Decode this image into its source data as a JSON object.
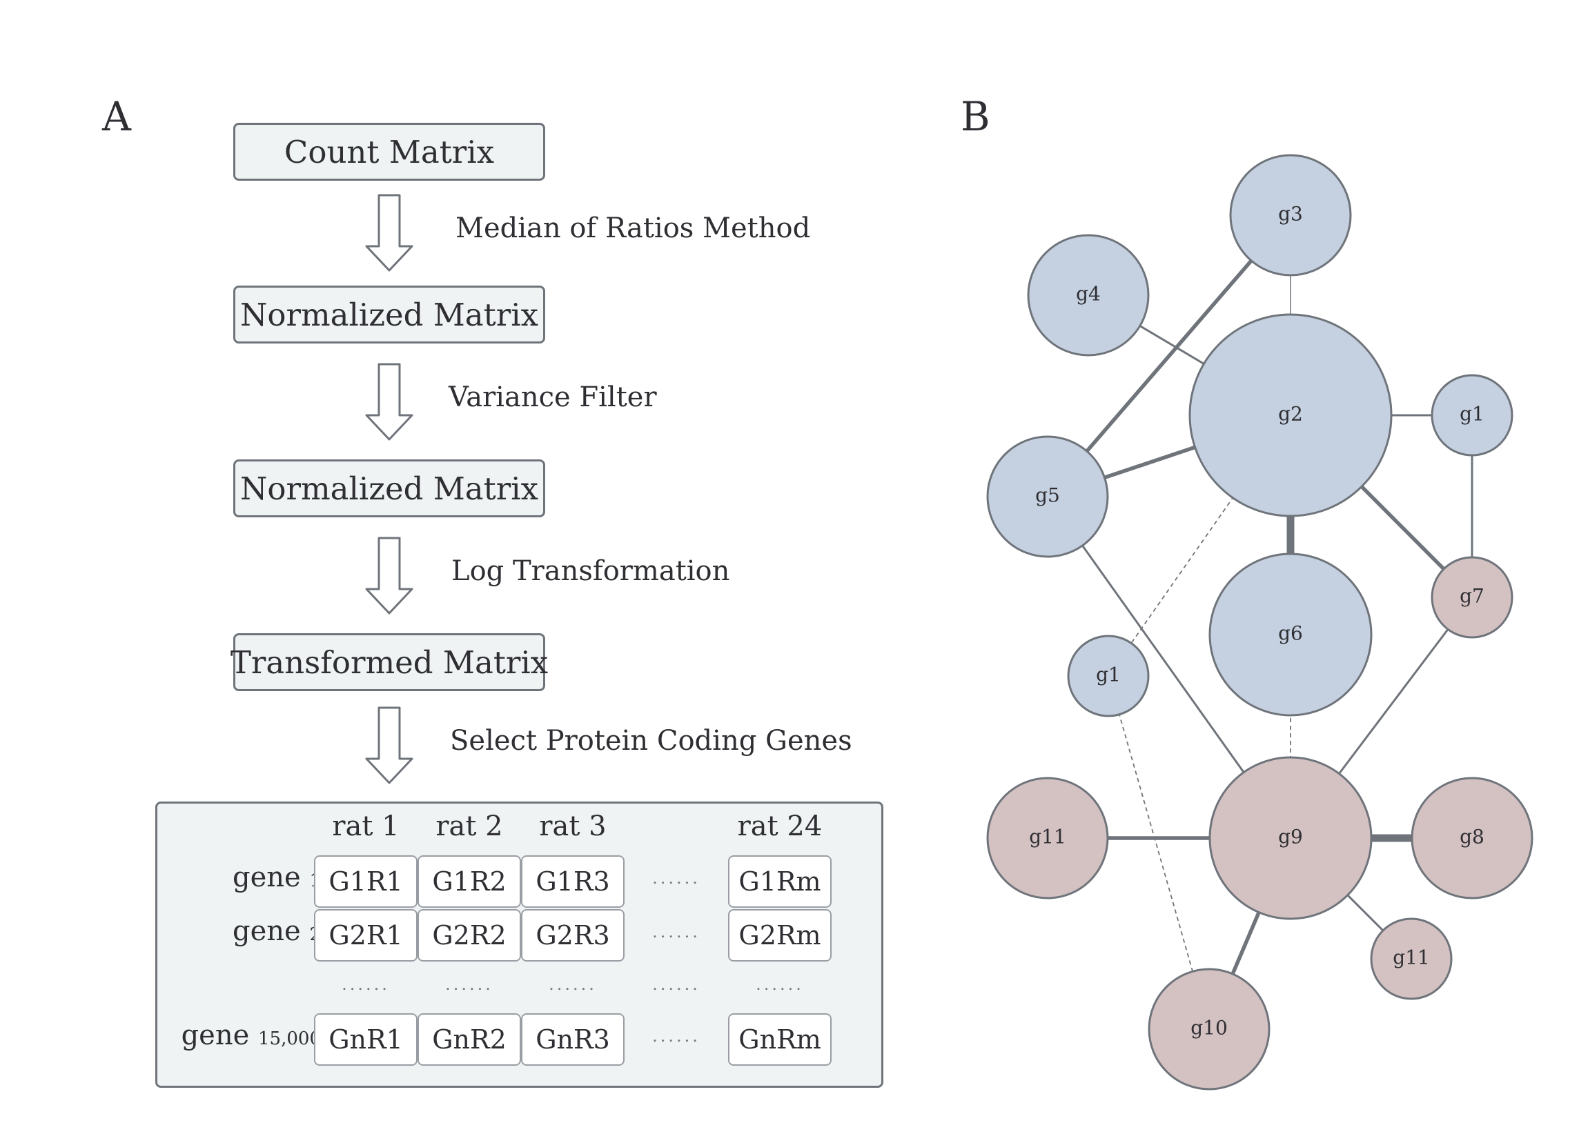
{
  "panel_a": {
    "letter": "A",
    "boxes": [
      "Count Matrix",
      "Normalized Matrix",
      "Normalized Matrix",
      "Transformed Matrix"
    ],
    "steps": [
      "Median of Ratios Method",
      "Variance Filter",
      "Log Transformation",
      "Select Protein Coding Genes"
    ],
    "table": {
      "columns": [
        "rat 1",
        "rat 2",
        "rat 3",
        "rat 24"
      ],
      "rows": [
        {
          "label": "gene",
          "sub": "1",
          "cells": [
            "G1R1",
            "G1R2",
            "G1R3",
            "G1Rm"
          ]
        },
        {
          "label": "gene",
          "sub": "2",
          "cells": [
            "G2R1",
            "G2R2",
            "G2R3",
            "G2Rm"
          ]
        },
        {
          "label": "gene",
          "sub": "15,000",
          "cells": [
            "GnR1",
            "GnR2",
            "GnR3",
            "GnRm"
          ]
        }
      ],
      "ellipsis": "......"
    }
  },
  "panel_b": {
    "letter": "B",
    "colors": {
      "blue": "#c5d1e0",
      "pink": "#d4c2c2",
      "stroke": "#6f747b"
    },
    "nodes": [
      {
        "id": "g3",
        "label": "g3",
        "group": "blue"
      },
      {
        "id": "g4",
        "label": "g4",
        "group": "blue"
      },
      {
        "id": "g2",
        "label": "g2",
        "group": "blue"
      },
      {
        "id": "g1a",
        "label": "g1",
        "group": "blue"
      },
      {
        "id": "g5",
        "label": "g5",
        "group": "blue"
      },
      {
        "id": "g7",
        "label": "g7",
        "group": "pink"
      },
      {
        "id": "g6",
        "label": "g6",
        "group": "blue"
      },
      {
        "id": "g1b",
        "label": "g1",
        "group": "blue"
      },
      {
        "id": "g11a",
        "label": "g11",
        "group": "pink"
      },
      {
        "id": "g9",
        "label": "g9",
        "group": "pink"
      },
      {
        "id": "g8",
        "label": "g8",
        "group": "pink"
      },
      {
        "id": "g11b",
        "label": "g11",
        "group": "pink"
      },
      {
        "id": "g10",
        "label": "g10",
        "group": "pink"
      }
    ],
    "edges": [
      {
        "from": "g3",
        "to": "g2",
        "style": "thin"
      },
      {
        "from": "g3",
        "to": "g5",
        "style": "thick"
      },
      {
        "from": "g4",
        "to": "g2",
        "style": "medium"
      },
      {
        "from": "g2",
        "to": "g1a",
        "style": "medium"
      },
      {
        "from": "g2",
        "to": "g5",
        "style": "thick"
      },
      {
        "from": "g2",
        "to": "g6",
        "style": "heavy"
      },
      {
        "from": "g2",
        "to": "g7",
        "style": "thick"
      },
      {
        "from": "g2",
        "to": "g1b",
        "style": "dashed"
      },
      {
        "from": "g1a",
        "to": "g7",
        "style": "medium"
      },
      {
        "from": "g5",
        "to": "g9",
        "style": "medium"
      },
      {
        "from": "g7",
        "to": "g9",
        "style": "medium"
      },
      {
        "from": "g6",
        "to": "g9",
        "style": "dashed"
      },
      {
        "from": "g1b",
        "to": "g10",
        "style": "dashed"
      },
      {
        "from": "g11a",
        "to": "g9",
        "style": "thick"
      },
      {
        "from": "g9",
        "to": "g8",
        "style": "heavy"
      },
      {
        "from": "g9",
        "to": "g11b",
        "style": "medium"
      },
      {
        "from": "g9",
        "to": "g10",
        "style": "thick"
      }
    ]
  }
}
